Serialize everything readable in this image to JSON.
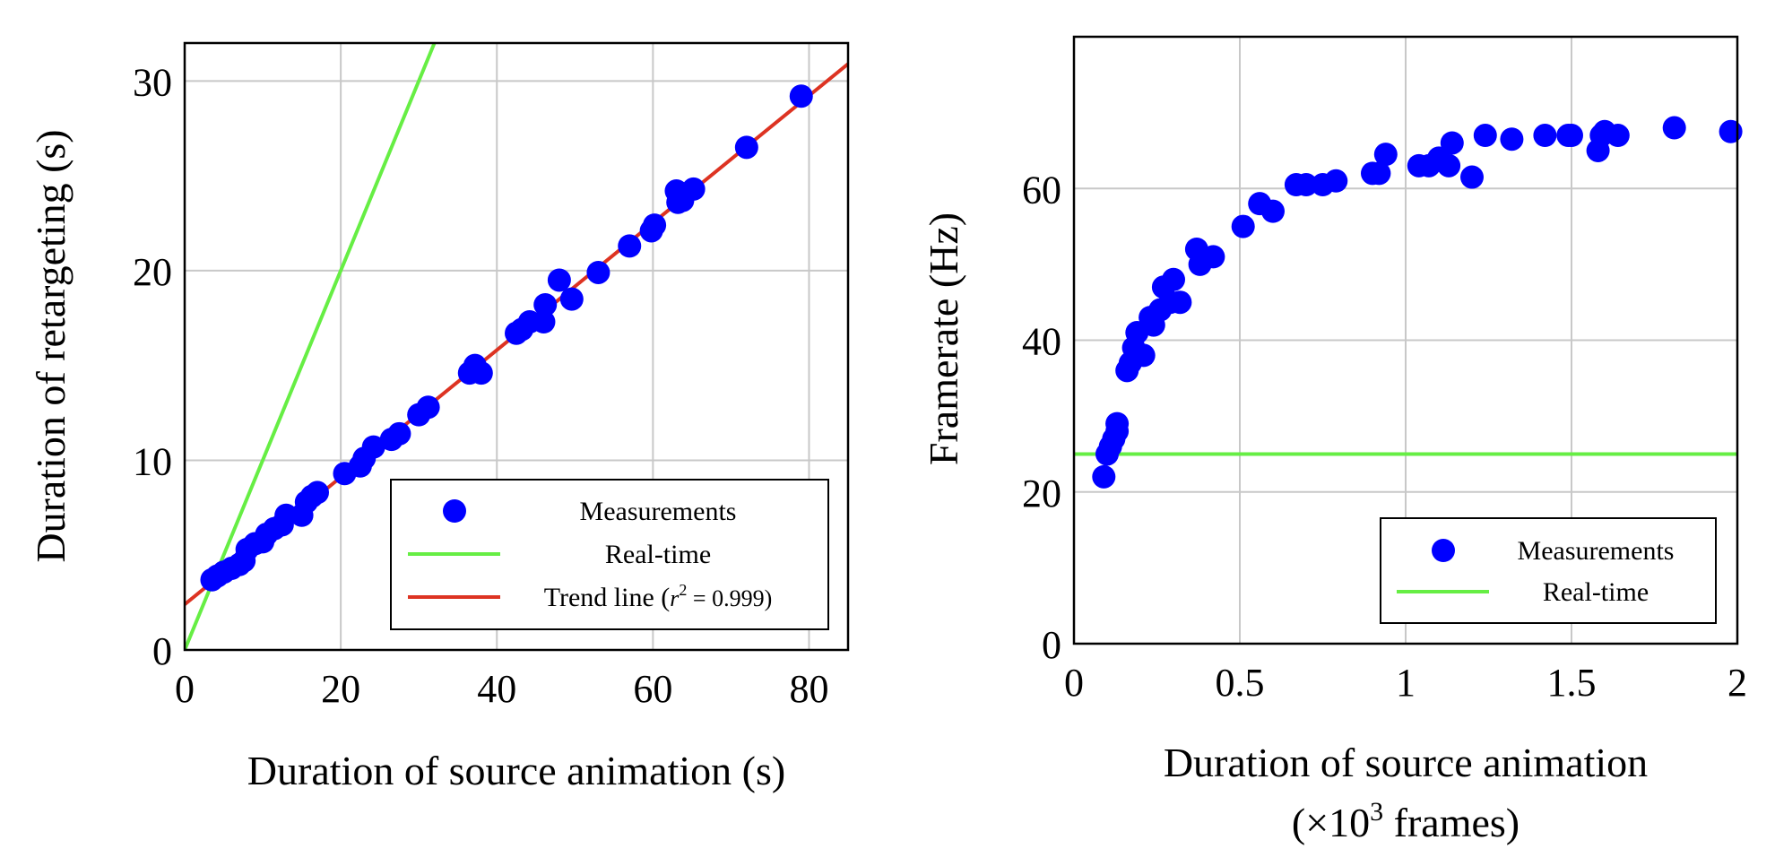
{
  "chart_data": [
    {
      "type": "scatter",
      "xlabel": "Duration of source animation (s)",
      "ylabel": "Duration of retargeting (s)",
      "xlim": [
        0,
        85
      ],
      "ylim": [
        0,
        32
      ],
      "xticks": [
        0,
        20,
        40,
        60,
        80
      ],
      "xtick_labels": [
        "0",
        "20",
        "40",
        "60",
        "80"
      ],
      "yticks": [
        0,
        10,
        20,
        30
      ],
      "ytick_labels": [
        "0",
        "10",
        "20",
        "30"
      ],
      "grid": true,
      "legend_position": "bottom-right",
      "series": [
        {
          "name": "Measurements",
          "kind": "points",
          "color": "#0000ff",
          "points": [
            [
              3.5,
              3.7
            ],
            [
              4.2,
              3.9
            ],
            [
              5,
              4.1
            ],
            [
              6,
              4.3
            ],
            [
              7,
              4.5
            ],
            [
              7.6,
              4.7
            ],
            [
              8,
              5.3
            ],
            [
              9,
              5.6
            ],
            [
              10,
              5.7
            ],
            [
              10.5,
              6.1
            ],
            [
              11.5,
              6.4
            ],
            [
              12.5,
              6.6
            ],
            [
              13,
              7.1
            ],
            [
              15,
              7.1
            ],
            [
              15.6,
              7.8
            ],
            [
              16.3,
              8.1
            ],
            [
              17,
              8.3
            ],
            [
              20.5,
              9.3
            ],
            [
              22.5,
              9.7
            ],
            [
              23,
              10.1
            ],
            [
              24.2,
              10.7
            ],
            [
              26.5,
              11.1
            ],
            [
              27.5,
              11.4
            ],
            [
              30,
              12.4
            ],
            [
              31.2,
              12.8
            ],
            [
              36.5,
              14.6
            ],
            [
              37.2,
              15
            ],
            [
              38,
              14.6
            ],
            [
              42.5,
              16.7
            ],
            [
              43.2,
              16.9
            ],
            [
              44.2,
              17.3
            ],
            [
              46,
              17.3
            ],
            [
              46.2,
              18.2
            ],
            [
              48,
              19.5
            ],
            [
              49.6,
              18.5
            ],
            [
              53,
              19.9
            ],
            [
              57,
              21.3
            ],
            [
              59.8,
              22.1
            ],
            [
              60.2,
              22.4
            ],
            [
              63,
              24.2
            ],
            [
              63.2,
              23.6
            ],
            [
              63.8,
              23.7
            ],
            [
              65.2,
              24.3
            ],
            [
              72,
              26.5
            ],
            [
              79,
              29.2
            ]
          ]
        },
        {
          "name": "Real-time",
          "kind": "line",
          "color": "#66ee44",
          "points": [
            [
              0,
              0
            ],
            [
              32,
              32
            ]
          ]
        },
        {
          "name": "Trend line",
          "kind": "line",
          "color": "#dd3322",
          "points": [
            [
              0,
              2.4
            ],
            [
              85,
              30.9
            ]
          ]
        }
      ],
      "legend": {
        "measurements": "Measurements",
        "realtime": "Real-time",
        "trend_prefix": "Trend line (",
        "trend_r": "r",
        "trend_sup": "2",
        "trend_suffix": " = 0.999)"
      }
    },
    {
      "type": "scatter",
      "xlabel_line1": "Duration of source animation",
      "xlabel_line2_prefix": "(×10",
      "xlabel_line2_sup": "3",
      "xlabel_line2_suffix": " frames)",
      "ylabel": "Framerate (Hz)",
      "xlim": [
        0,
        2
      ],
      "ylim": [
        0,
        80
      ],
      "xticks": [
        0,
        0.5,
        1,
        1.5,
        2
      ],
      "xtick_labels": [
        "0",
        "0.5",
        "1",
        "1.5",
        "2"
      ],
      "yticks": [
        0,
        20,
        40,
        60
      ],
      "ytick_labels": [
        "0",
        "20",
        "40",
        "60"
      ],
      "grid": true,
      "legend_position": "bottom-right",
      "series": [
        {
          "name": "Measurements",
          "kind": "points",
          "color": "#0000ff",
          "points": [
            [
              0.09,
              22
            ],
            [
              0.1,
              25
            ],
            [
              0.11,
              26
            ],
            [
              0.12,
              27
            ],
            [
              0.13,
              29
            ],
            [
              0.13,
              28
            ],
            [
              0.16,
              36
            ],
            [
              0.17,
              37
            ],
            [
              0.18,
              39
            ],
            [
              0.19,
              41
            ],
            [
              0.21,
              38
            ],
            [
              0.23,
              43
            ],
            [
              0.24,
              42
            ],
            [
              0.26,
              44
            ],
            [
              0.27,
              47
            ],
            [
              0.29,
              45
            ],
            [
              0.3,
              48
            ],
            [
              0.32,
              45
            ],
            [
              0.37,
              52
            ],
            [
              0.38,
              50
            ],
            [
              0.42,
              51
            ],
            [
              0.51,
              55
            ],
            [
              0.56,
              58
            ],
            [
              0.6,
              57
            ],
            [
              0.67,
              60.5
            ],
            [
              0.7,
              60.5
            ],
            [
              0.75,
              60.5
            ],
            [
              0.79,
              61
            ],
            [
              0.9,
              62
            ],
            [
              0.92,
              62
            ],
            [
              0.94,
              64.5
            ],
            [
              1.04,
              63
            ],
            [
              1.07,
              63
            ],
            [
              1.1,
              64
            ],
            [
              1.13,
              63
            ],
            [
              1.14,
              66
            ],
            [
              1.2,
              61.5
            ],
            [
              1.24,
              67
            ],
            [
              1.32,
              66.5
            ],
            [
              1.42,
              67
            ],
            [
              1.49,
              67
            ],
            [
              1.5,
              67
            ],
            [
              1.58,
              65
            ],
            [
              1.59,
              67
            ],
            [
              1.6,
              67.5
            ],
            [
              1.64,
              67
            ],
            [
              1.81,
              68
            ],
            [
              1.98,
              67.5
            ]
          ]
        },
        {
          "name": "Real-time",
          "kind": "line",
          "color": "#66ee44",
          "points": [
            [
              0,
              25
            ],
            [
              2,
              25
            ]
          ]
        }
      ],
      "legend": {
        "measurements": "Measurements",
        "realtime": "Real-time"
      }
    }
  ]
}
